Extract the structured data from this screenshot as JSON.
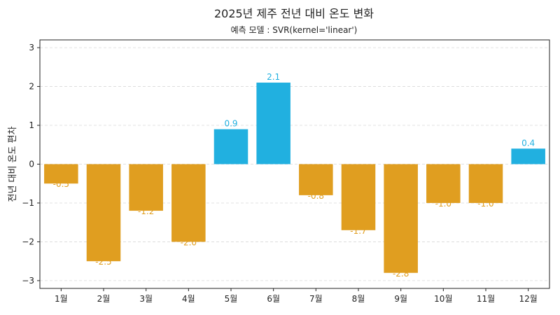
{
  "chart_data": {
    "type": "bar",
    "title": "2025년 제주 전년 대비 온도 변화",
    "subtitle": "예측 모델 : SVR(kernel='linear')",
    "xlabel": "",
    "ylabel": "전년 대비 온도 편차",
    "categories": [
      "1월",
      "2월",
      "3월",
      "4월",
      "5월",
      "6월",
      "7월",
      "8월",
      "9월",
      "10월",
      "11월",
      "12월"
    ],
    "values": [
      -0.5,
      -2.5,
      -1.2,
      -2.0,
      0.9,
      2.1,
      -0.8,
      -1.7,
      -2.8,
      -1.0,
      -1.0,
      0.4
    ],
    "value_labels": [
      "-0.5",
      "-2.5",
      "-1.2",
      "-2.0",
      "0.9",
      "2.1",
      "-0.8",
      "-1.7",
      "-2.8",
      "-1.0",
      "-1.0",
      "0.4"
    ],
    "ylim": [
      -3.2,
      3.2
    ],
    "yticks": [
      -3,
      -2,
      -1,
      0,
      1,
      2,
      3
    ],
    "ytick_labels": [
      "−3",
      "−2",
      "−1",
      "0",
      "1",
      "2",
      "3"
    ],
    "grid": "horizontal dashed",
    "colors": {
      "positive": "#21b0e0",
      "negative": "#e09e20",
      "grid": "#d8d8d8",
      "axis": "#222222"
    }
  }
}
